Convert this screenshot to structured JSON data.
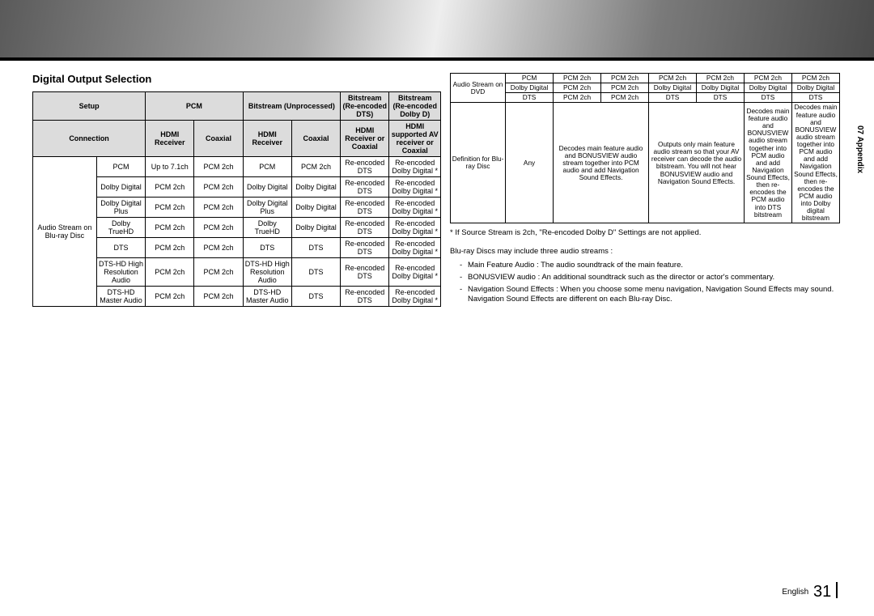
{
  "page": {
    "side_tab": "07  Appendix",
    "footer_lang": "English",
    "footer_page": "31"
  },
  "left": {
    "title": "Digital Output Selection",
    "head_setup": "Setup",
    "head_pcm": "PCM",
    "head_bitstream_un": "Bitstream (Unprocessed)",
    "head_bitstream_dts": "Bitstream (Re-encoded DTS)",
    "head_bitstream_dd": "Bitstream (Re-encoded Dolby D)",
    "conn_label": "Connection",
    "conn_pcm_hdmi": "HDMI Receiver",
    "conn_pcm_coax": "Coaxial",
    "conn_bs_hdmi": "HDMI Receiver",
    "conn_bs_coax": "Coaxial",
    "conn_dts": "HDMI Receiver or Coaxial",
    "conn_dd": "HDMI supported AV receiver or Coaxial",
    "row_group_label": "Audio Stream on Blu-ray Disc",
    "rows": [
      {
        "a": "PCM",
        "b": "Up to 7.1ch",
        "c": "PCM 2ch",
        "d": "PCM",
        "e": "PCM 2ch",
        "f": "Re-encoded DTS",
        "g": "Re-encoded Dolby Digital *"
      },
      {
        "a": "Dolby Digital",
        "b": "PCM 2ch",
        "c": "PCM 2ch",
        "d": "Dolby Digital",
        "e": "Dolby Digital",
        "f": "Re-encoded DTS",
        "g": "Re-encoded Dolby Digital *"
      },
      {
        "a": "Dolby Digital Plus",
        "b": "PCM 2ch",
        "c": "PCM 2ch",
        "d": "Dolby Digital Plus",
        "e": "Dolby Digital",
        "f": "Re-encoded DTS",
        "g": "Re-encoded Dolby Digital *"
      },
      {
        "a": "Dolby TrueHD",
        "b": "PCM 2ch",
        "c": "PCM 2ch",
        "d": "Dolby TrueHD",
        "e": "Dolby Digital",
        "f": "Re-encoded DTS",
        "g": "Re-encoded Dolby Digital *"
      },
      {
        "a": "DTS",
        "b": "PCM 2ch",
        "c": "PCM 2ch",
        "d": "DTS",
        "e": "DTS",
        "f": "Re-encoded DTS",
        "g": "Re-encoded Dolby Digital *"
      },
      {
        "a": "DTS-HD High Resolution Audio",
        "b": "PCM 2ch",
        "c": "PCM 2ch",
        "d": "DTS-HD High Resolution Audio",
        "e": "DTS",
        "f": "Re-encoded DTS",
        "g": "Re-encoded Dolby Digital *"
      },
      {
        "a": "DTS-HD Master Audio",
        "b": "PCM 2ch",
        "c": "PCM 2ch",
        "d": "DTS-HD Master Audio",
        "e": "DTS",
        "f": "Re-encoded DTS",
        "g": "Re-encoded Dolby Digital *"
      }
    ]
  },
  "right_top": {
    "row_group_label": "Audio Stream on DVD",
    "rows": [
      {
        "a": "PCM",
        "b": "PCM 2ch",
        "c": "PCM 2ch",
        "d": "PCM 2ch",
        "e": "PCM 2ch",
        "f": "PCM 2ch",
        "g": "PCM 2ch"
      },
      {
        "a": "Dolby Digital",
        "b": "PCM 2ch",
        "c": "PCM 2ch",
        "d": "Dolby Digital",
        "e": "Dolby Digital",
        "f": "Dolby Digital",
        "g": "Dolby Digital"
      },
      {
        "a": "DTS",
        "b": "PCM 2ch",
        "c": "PCM 2ch",
        "d": "DTS",
        "e": "DTS",
        "f": "DTS",
        "g": "DTS"
      }
    ]
  },
  "right_def": {
    "row_label": "Definition for Blu-ray Disc",
    "c0": "Any",
    "c1": "Decodes main feature audio and BONUSVIEW audio stream together into PCM audio and add Navigation Sound Effects.",
    "c2": "Outputs only main feature audio stream so that your AV receiver can decode the audio bitstream. You will not hear BONUSVIEW audio and Navigation Sound Effects.",
    "c3": "Decodes main feature audio and BONUSVIEW audio stream together into PCM audio and add Navigation Sound Effects, then re-encodes the PCM audio into DTS bitstream",
    "c4": "Decodes main feature audio and BONUSVIEW audio stream together into PCM audio and add Navigation Sound Effects, then re-encodes the PCM audio into Dolby digital bitstream"
  },
  "notes": {
    "star": "* If Source Stream is 2ch, \"Re-encoded Dolby D\" Settings are not applied.",
    "lead": "Blu-ray Discs may include three audio streams :",
    "b1": "Main Feature Audio : The audio soundtrack of the main feature.",
    "b2": "BONUSVIEW audio : An additional soundtrack such as the director or actor's commentary.",
    "b3": "Navigation Sound Effects : When you choose some menu navigation, Navigation Sound Effects may sound. Navigation Sound Effects are different on each Blu-ray Disc."
  }
}
